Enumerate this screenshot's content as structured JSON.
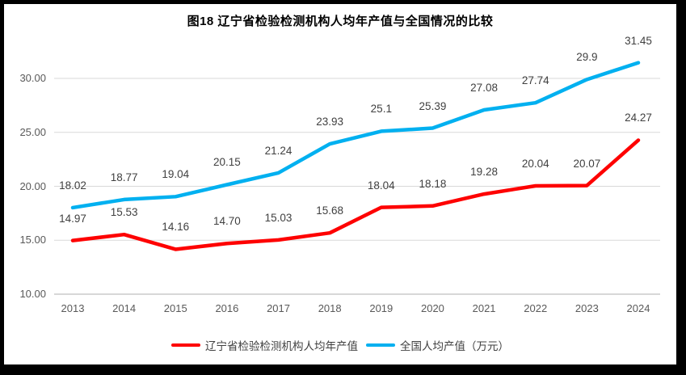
{
  "chart_data": {
    "type": "line",
    "title": "图18 辽宁省检验检测机构人均年产值与全国情况的比较",
    "categories": [
      "2013",
      "2014",
      "2015",
      "2016",
      "2017",
      "2018",
      "2019",
      "2020",
      "2021",
      "2022",
      "2023",
      "2024"
    ],
    "series": [
      {
        "name": "辽宁省检验检测机构人均年产值",
        "key": "liaoning",
        "color": "#FE0000",
        "values": [
          14.97,
          15.53,
          14.16,
          14.7,
          15.03,
          15.68,
          18.04,
          18.18,
          19.28,
          20.04,
          20.07,
          24.27
        ],
        "labels": [
          "14.97",
          "15.53",
          "14.16",
          "14.70",
          "15.03",
          "15.68",
          "18.04",
          "18.18",
          "19.28",
          "20.04",
          "20.07",
          "24.27"
        ]
      },
      {
        "name": "全国人均产值（万元）",
        "key": "national",
        "color": "#00B0F0",
        "values": [
          18.02,
          18.77,
          19.04,
          20.15,
          21.24,
          23.93,
          25.1,
          25.39,
          27.08,
          27.74,
          29.9,
          31.45
        ],
        "labels": [
          "18.02",
          "18.77",
          "19.04",
          "20.15",
          "21.24",
          "23.93",
          "25.1",
          "25.39",
          "27.08",
          "27.74",
          "29.9",
          "31.45"
        ]
      }
    ],
    "y_axis": {
      "min": 10,
      "max": 32.5,
      "tick_step": 5,
      "ticks": [
        10,
        15,
        20,
        25,
        30
      ],
      "tick_labels": [
        "10.00",
        "15.00",
        "20.00",
        "25.00",
        "30.00"
      ]
    },
    "grid": true,
    "legend_position": "bottom",
    "colors": {
      "gridline": "#D9D9D9",
      "axis_line": "#BFBFBF",
      "tick_label": "#595959",
      "data_label": "#404040"
    }
  }
}
